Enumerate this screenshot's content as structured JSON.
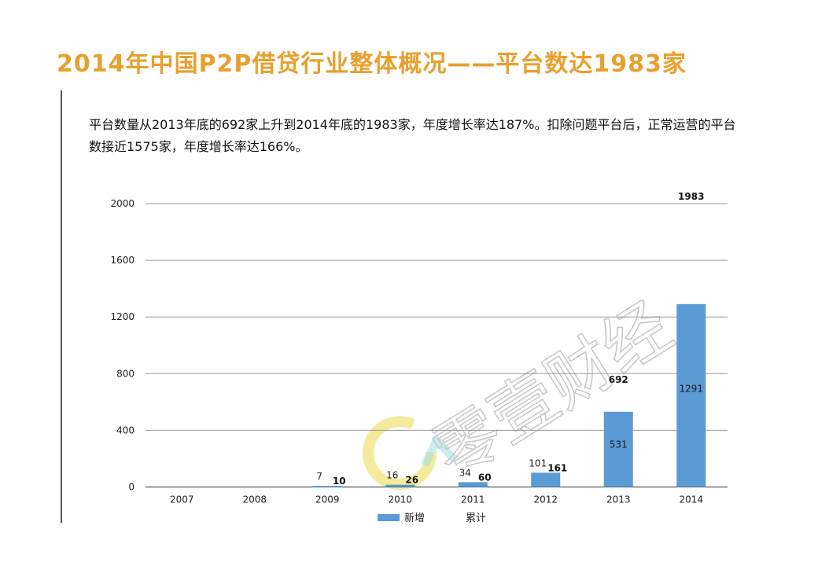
{
  "slide": {
    "title": "2014年中国P2P借贷行业整体概况——平台数达1983家",
    "paragraph": "平台数量从2013年底的692家上升到2014年底的1983家，年度增长率达187%。扣除问题平台后，正常运营的平台数接近1575家，年度增长率达166%。"
  },
  "watermark": {
    "text": "零壹财经",
    "colors": [
      "#f2e37a",
      "#a8e0e6",
      "#c6c6c6"
    ]
  },
  "chart_data": {
    "type": "bar",
    "categories": [
      "2007",
      "2008",
      "2009",
      "2010",
      "2011",
      "2012",
      "2013",
      "2014"
    ],
    "series": [
      {
        "name": "新增",
        "values": [
          null,
          null,
          7,
          16,
          34,
          101,
          531,
          1291
        ],
        "color": "#5b9bd5"
      },
      {
        "name": "累计",
        "values": [
          null,
          null,
          10,
          26,
          60,
          161,
          692,
          1983
        ]
      }
    ],
    "ylim": [
      0,
      2000
    ],
    "yticks": [
      "0",
      "400",
      "800",
      "1200",
      "1600",
      "2000"
    ],
    "grid": true,
    "legend_position": "bottom"
  }
}
